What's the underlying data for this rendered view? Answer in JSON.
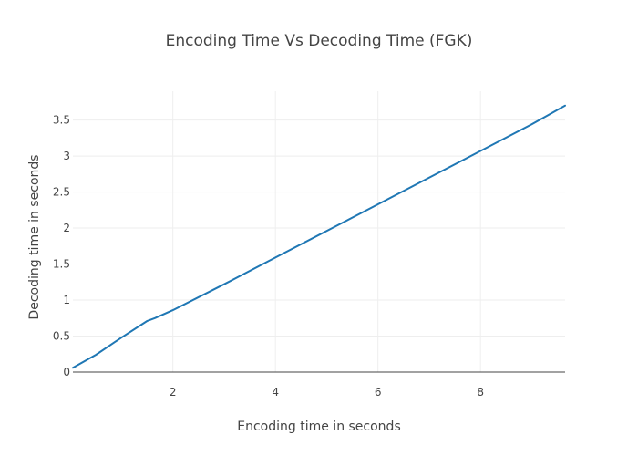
{
  "chart_data": {
    "type": "line",
    "title": "Encoding Time Vs Decoding Time (FGK)",
    "xlabel": "Encoding time in seconds",
    "ylabel": "Decoding time in seconds",
    "xlim": [
      0.05,
      9.65
    ],
    "ylim": [
      0,
      3.9
    ],
    "xticks": [
      2,
      4,
      6,
      8
    ],
    "yticks": [
      0,
      0.5,
      1,
      1.5,
      2,
      2.5,
      3,
      3.5
    ],
    "grid": true,
    "series": [
      {
        "color": "#1f77b4",
        "x": [
          0.05,
          0.5,
          1.0,
          1.5,
          1.65,
          2.0,
          3.0,
          4.0,
          5.0,
          6.0,
          7.0,
          8.0,
          9.0,
          9.65
        ],
        "y": [
          0.06,
          0.24,
          0.48,
          0.71,
          0.75,
          0.86,
          1.22,
          1.59,
          1.96,
          2.33,
          2.7,
          3.07,
          3.44,
          3.7
        ]
      }
    ]
  }
}
